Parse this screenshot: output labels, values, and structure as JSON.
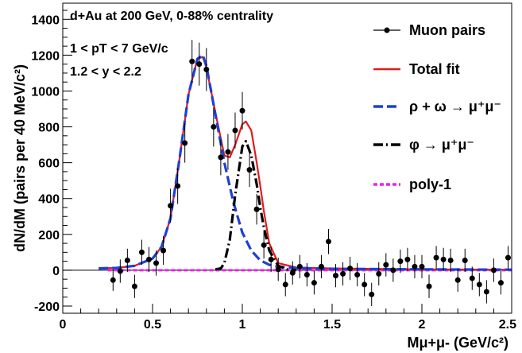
{
  "chart_data": {
    "type": "line",
    "xlim": [
      0,
      2.5
    ],
    "ylim": [
      -240,
      1490
    ],
    "x_ticks": [
      "0",
      "0.5",
      "1",
      "1.5",
      "2",
      "2.5"
    ],
    "y_ticks": [
      "-200",
      "0",
      "200",
      "400",
      "600",
      "800",
      "1000",
      "1200",
      "1400"
    ],
    "xlabel": "Mμ+μ- (GeV/c²)",
    "ylabel": "dN/dM (pairs per 40 MeV/c²)",
    "annotations": [
      "d+Au at 200 GeV, 0-88% centrality",
      "1 < pT < 7 GeV/c",
      "1.2 < y < 2.2"
    ],
    "legend_position": "top-right",
    "legend": [
      {
        "label": "Muon pairs",
        "style": "marker",
        "color": "#000000"
      },
      {
        "label": "Total fit",
        "style": "solid",
        "color": "#e41a1c"
      },
      {
        "label": "ρ + ω → μ⁺μ⁻",
        "style": "dashed",
        "color": "#1f3fd6"
      },
      {
        "label": "φ → μ⁺μ⁻",
        "style": "dashdot",
        "color": "#000000"
      },
      {
        "label": "poly-1",
        "style": "dotted",
        "color": "#ee22ee"
      }
    ],
    "series": [
      {
        "name": "Muon pairs",
        "type": "scatter",
        "color": "#000000",
        "x": [
          0.28,
          0.32,
          0.36,
          0.4,
          0.44,
          0.48,
          0.52,
          0.56,
          0.6,
          0.64,
          0.68,
          0.72,
          0.76,
          0.8,
          0.84,
          0.88,
          0.92,
          0.96,
          1.0,
          1.04,
          1.08,
          1.12,
          1.16,
          1.2,
          1.24,
          1.28,
          1.32,
          1.36,
          1.4,
          1.44,
          1.48,
          1.52,
          1.56,
          1.6,
          1.64,
          1.68,
          1.72,
          1.76,
          1.8,
          1.84,
          1.88,
          1.92,
          1.96,
          2.0,
          2.04,
          2.08,
          2.12,
          2.16,
          2.2,
          2.24,
          2.28,
          2.32,
          2.36,
          2.4,
          2.44,
          2.48
        ],
        "y": [
          -55,
          -5,
          55,
          -90,
          100,
          60,
          40,
          110,
          360,
          470,
          710,
          1165,
          1150,
          1120,
          800,
          630,
          660,
          780,
          890,
          560,
          340,
          140,
          60,
          5,
          -80,
          -15,
          20,
          -25,
          -70,
          20,
          160,
          -30,
          -20,
          10,
          -25,
          -80,
          -135,
          -20,
          30,
          0,
          50,
          60,
          20,
          20,
          -90,
          70,
          60,
          55,
          -55,
          55,
          -45,
          -80,
          -120,
          0,
          -70,
          70
        ],
        "yerr": [
          60,
          65,
          65,
          65,
          70,
          70,
          70,
          80,
          95,
          100,
          110,
          120,
          120,
          120,
          110,
          100,
          100,
          100,
          105,
          95,
          85,
          75,
          70,
          65,
          65,
          65,
          65,
          65,
          65,
          65,
          70,
          65,
          65,
          65,
          65,
          65,
          65,
          65,
          65,
          65,
          65,
          65,
          65,
          65,
          65,
          65,
          65,
          65,
          65,
          65,
          65,
          65,
          65,
          65,
          65,
          65
        ]
      },
      {
        "name": "Total fit",
        "type": "line",
        "color": "#e41a1c",
        "x": [
          0.2,
          0.3,
          0.4,
          0.5,
          0.55,
          0.6,
          0.65,
          0.7,
          0.75,
          0.78,
          0.8,
          0.85,
          0.9,
          0.93,
          0.96,
          1.0,
          1.02,
          1.05,
          1.08,
          1.1,
          1.12,
          1.15,
          1.2,
          1.3,
          1.5,
          2.0,
          2.5
        ],
        "y": [
          10,
          13,
          25,
          65,
          130,
          290,
          620,
          980,
          1180,
          1190,
          1130,
          880,
          640,
          630,
          700,
          815,
          830,
          780,
          600,
          470,
          330,
          150,
          40,
          15,
          10,
          5,
          3
        ]
      },
      {
        "name": "ρ + ω → μ⁺μ⁻",
        "type": "line",
        "color": "#1f3fd6",
        "x": [
          0.2,
          0.3,
          0.4,
          0.5,
          0.55,
          0.6,
          0.65,
          0.7,
          0.75,
          0.78,
          0.8,
          0.85,
          0.9,
          0.95,
          1.0,
          1.05,
          1.1,
          1.15,
          1.2,
          1.3,
          1.5,
          2.0,
          2.5
        ],
        "y": [
          10,
          13,
          25,
          65,
          130,
          290,
          620,
          980,
          1180,
          1200,
          1140,
          870,
          600,
          380,
          210,
          110,
          55,
          30,
          20,
          12,
          8,
          5,
          3
        ]
      },
      {
        "name": "φ → μ⁺μ⁻",
        "type": "line",
        "color": "#000000",
        "x": [
          0.85,
          0.88,
          0.9,
          0.93,
          0.96,
          1.0,
          1.02,
          1.05,
          1.08,
          1.1,
          1.12,
          1.15,
          1.2,
          1.25,
          1.3
        ],
        "y": [
          5,
          10,
          40,
          170,
          420,
          690,
          720,
          640,
          480,
          350,
          240,
          110,
          25,
          5,
          0
        ]
      },
      {
        "name": "poly-1",
        "type": "line",
        "color": "#ee22ee",
        "x": [
          0.25,
          2.5
        ],
        "y": [
          0,
          0
        ]
      }
    ]
  }
}
